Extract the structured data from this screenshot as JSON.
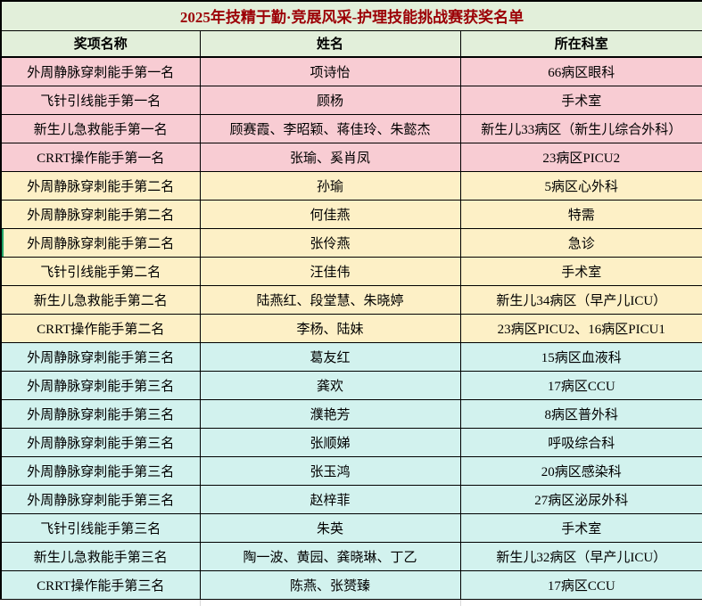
{
  "title": "2025年技精于勤·竞展风采-护理技能挑战赛获奖名单",
  "columns": [
    "奖项名称",
    "姓名",
    "所在科室"
  ],
  "selected_row_index": 6,
  "rows": [
    {
      "award": "外周静脉穿刺能手第一名",
      "name": "项诗怡",
      "dept": "66病区眼科",
      "rank": 1
    },
    {
      "award": "飞针引线能手第一名",
      "name": "顾杨",
      "dept": "手术室",
      "rank": 1
    },
    {
      "award": "新生儿急救能手第一名",
      "name": "顾赛霞、李昭颖、蒋佳玲、朱懿杰",
      "dept": "新生儿33病区（新生儿综合外科）",
      "rank": 1
    },
    {
      "award": "CRRT操作能手第一名",
      "name": "张瑜、奚肖凤",
      "dept": "23病区PICU2",
      "rank": 1
    },
    {
      "award": "外周静脉穿刺能手第二名",
      "name": "孙瑜",
      "dept": "5病区心外科",
      "rank": 2
    },
    {
      "award": "外周静脉穿刺能手第二名",
      "name": "何佳燕",
      "dept": "特需",
      "rank": 2
    },
    {
      "award": "外周静脉穿刺能手第二名",
      "name": "张伶燕",
      "dept": "急诊",
      "rank": 2
    },
    {
      "award": "飞针引线能手第二名",
      "name": "汪佳伟",
      "dept": "手术室",
      "rank": 2
    },
    {
      "award": "新生儿急救能手第二名",
      "name": "陆燕红、段堂慧、朱晓婷",
      "dept": "新生儿34病区（早产儿ICU）",
      "rank": 2
    },
    {
      "award": "CRRT操作能手第二名",
      "name": "李杨、陆妹",
      "dept": "23病区PICU2、16病区PICU1",
      "rank": 2
    },
    {
      "award": "外周静脉穿刺能手第三名",
      "name": "葛友红",
      "dept": "15病区血液科",
      "rank": 3
    },
    {
      "award": "外周静脉穿刺能手第三名",
      "name": "龚欢",
      "dept": "17病区CCU",
      "rank": 3
    },
    {
      "award": "外周静脉穿刺能手第三名",
      "name": "濮艳芳",
      "dept": "8病区普外科",
      "rank": 3
    },
    {
      "award": "外周静脉穿刺能手第三名",
      "name": "张顺娣",
      "dept": "呼吸综合科",
      "rank": 3
    },
    {
      "award": "外周静脉穿刺能手第三名",
      "name": "张玉鸿",
      "dept": "20病区感染科",
      "rank": 3
    },
    {
      "award": "外周静脉穿刺能手第三名",
      "name": "赵梓菲",
      "dept": "27病区泌尿外科",
      "rank": 3
    },
    {
      "award": "飞针引线能手第三名",
      "name": "朱英",
      "dept": "手术室",
      "rank": 3
    },
    {
      "award": "新生儿急救能手第三名",
      "name": "陶一波、黄园、龚晓琳、丁乙",
      "dept": "新生儿32病区（早产儿ICU）",
      "rank": 3
    },
    {
      "award": "CRRT操作能手第三名",
      "name": "陈燕、张赟臻",
      "dept": "17病区CCU",
      "rank": 3
    }
  ],
  "colors": {
    "header_bg": "#e2efda",
    "title_color": "#9c0006",
    "rank1_bg": "#f8ccd3",
    "rank2_bg": "#fdf0c6",
    "rank3_bg": "#d2f2ee",
    "border_color": "#000000",
    "gridline_color": "#d9d9d9",
    "selection_green": "#21a366"
  }
}
